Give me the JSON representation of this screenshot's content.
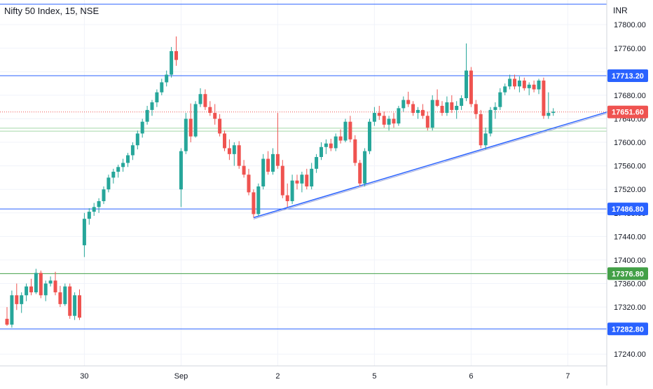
{
  "header": {
    "title": "Nifty 50 Index, 15, NSE",
    "currency": "INR"
  },
  "chart_data": {
    "type": "candlestick",
    "title": "Nifty 50 Index, 15, NSE",
    "ylim": [
      17220,
      17830
    ],
    "x_labels": [
      {
        "label": "30",
        "index": 16
      },
      {
        "label": "Sep",
        "index": 36
      },
      {
        "label": "2",
        "index": 56
      },
      {
        "label": "5",
        "index": 76
      },
      {
        "label": "6",
        "index": 96
      },
      {
        "label": "7",
        "index": 116
      }
    ],
    "y_ticks": [
      17240,
      17280,
      17320,
      17360,
      17400,
      17440,
      17480,
      17520,
      17560,
      17600,
      17640,
      17680,
      17720,
      17760,
      17800
    ],
    "up_color": "#26a69a",
    "down_color": "#ef5350",
    "levels": [
      {
        "name": "level-17713",
        "value": 17713.2,
        "label": "17713.20",
        "color": "#2962ff"
      },
      {
        "name": "level-17486",
        "value": 17486.8,
        "label": "17486.80",
        "color": "#2962ff"
      },
      {
        "name": "level-17376",
        "value": 17376.8,
        "label": "17376.80",
        "color": "#43a047"
      },
      {
        "name": "level-17282",
        "value": 17282.8,
        "label": "17282.80",
        "color": "#2962ff"
      }
    ],
    "top_line": {
      "value": 17845,
      "color": "#2962ff"
    },
    "current_price": {
      "value": 17651.6,
      "label": "17651.60",
      "color": "#ef5350"
    },
    "support_band": [
      17619,
      17624
    ],
    "trendline": {
      "start": {
        "index": 51,
        "value": 17472
      },
      "end": {
        "index": 124,
        "value": 17650
      },
      "color": "#2962ff"
    },
    "candles": [
      [
        17300,
        17320,
        17288,
        17290
      ],
      [
        17290,
        17348,
        17285,
        17340
      ],
      [
        17340,
        17360,
        17315,
        17325
      ],
      [
        17325,
        17345,
        17310,
        17340
      ],
      [
        17340,
        17360,
        17330,
        17355
      ],
      [
        17355,
        17368,
        17340,
        17345
      ],
      [
        17345,
        17385,
        17342,
        17378
      ],
      [
        17378,
        17382,
        17335,
        17340
      ],
      [
        17340,
        17365,
        17330,
        17360
      ],
      [
        17360,
        17372,
        17355,
        17365
      ],
      [
        17365,
        17380,
        17340,
        17345
      ],
      [
        17345,
        17356,
        17320,
        17325
      ],
      [
        17325,
        17360,
        17322,
        17355
      ],
      [
        17355,
        17360,
        17300,
        17305
      ],
      [
        17305,
        17345,
        17298,
        17340
      ],
      [
        17340,
        17350,
        17298,
        17302
      ],
      [
        17425,
        17480,
        17405,
        17470
      ],
      [
        17470,
        17488,
        17460,
        17482
      ],
      [
        17482,
        17497,
        17475,
        17490
      ],
      [
        17490,
        17505,
        17480,
        17500
      ],
      [
        17500,
        17525,
        17495,
        17520
      ],
      [
        17520,
        17545,
        17515,
        17540
      ],
      [
        17540,
        17555,
        17530,
        17550
      ],
      [
        17550,
        17562,
        17540,
        17558
      ],
      [
        17558,
        17572,
        17550,
        17565
      ],
      [
        17565,
        17582,
        17558,
        17578
      ],
      [
        17578,
        17600,
        17570,
        17595
      ],
      [
        17595,
        17620,
        17588,
        17615
      ],
      [
        17615,
        17640,
        17608,
        17635
      ],
      [
        17635,
        17662,
        17630,
        17655
      ],
      [
        17655,
        17672,
        17645,
        17668
      ],
      [
        17668,
        17690,
        17660,
        17685
      ],
      [
        17685,
        17708,
        17680,
        17702
      ],
      [
        17702,
        17722,
        17695,
        17715
      ],
      [
        17715,
        17762,
        17710,
        17755
      ],
      [
        17755,
        17780,
        17730,
        17740
      ],
      [
        17520,
        17590,
        17490,
        17585
      ],
      [
        17585,
        17650,
        17580,
        17640
      ],
      [
        17640,
        17666,
        17600,
        17610
      ],
      [
        17610,
        17670,
        17608,
        17665
      ],
      [
        17665,
        17692,
        17660,
        17682
      ],
      [
        17682,
        17690,
        17655,
        17660
      ],
      [
        17660,
        17670,
        17645,
        17650
      ],
      [
        17650,
        17665,
        17630,
        17640
      ],
      [
        17640,
        17648,
        17610,
        17615
      ],
      [
        17615,
        17620,
        17585,
        17590
      ],
      [
        17590,
        17605,
        17570,
        17580
      ],
      [
        17580,
        17600,
        17560,
        17595
      ],
      [
        17595,
        17602,
        17555,
        17560
      ],
      [
        17560,
        17570,
        17540,
        17545
      ],
      [
        17545,
        17555,
        17510,
        17515
      ],
      [
        17515,
        17520,
        17472,
        17478
      ],
      [
        17478,
        17530,
        17475,
        17525
      ],
      [
        17525,
        17580,
        17520,
        17572
      ],
      [
        17572,
        17585,
        17545,
        17550
      ],
      [
        17550,
        17590,
        17545,
        17580
      ],
      [
        17580,
        17650,
        17555,
        17560
      ],
      [
        17560,
        17570,
        17505,
        17510
      ],
      [
        17510,
        17530,
        17490,
        17500
      ],
      [
        17500,
        17545,
        17495,
        17535
      ],
      [
        17535,
        17545,
        17520,
        17530
      ],
      [
        17530,
        17550,
        17515,
        17545
      ],
      [
        17545,
        17555,
        17520,
        17525
      ],
      [
        17525,
        17565,
        17520,
        17555
      ],
      [
        17555,
        17580,
        17548,
        17575
      ],
      [
        17575,
        17600,
        17570,
        17592
      ],
      [
        17592,
        17605,
        17580,
        17598
      ],
      [
        17598,
        17606,
        17585,
        17590
      ],
      [
        17590,
        17615,
        17585,
        17610
      ],
      [
        17610,
        17622,
        17598,
        17603
      ],
      [
        17603,
        17640,
        17600,
        17635
      ],
      [
        17635,
        17645,
        17600,
        17605
      ],
      [
        17605,
        17612,
        17560,
        17565
      ],
      [
        17565,
        17570,
        17525,
        17530
      ],
      [
        17530,
        17590,
        17525,
        17585
      ],
      [
        17585,
        17640,
        17580,
        17635
      ],
      [
        17635,
        17660,
        17628,
        17650
      ],
      [
        17650,
        17662,
        17638,
        17645
      ],
      [
        17645,
        17652,
        17625,
        17630
      ],
      [
        17630,
        17645,
        17620,
        17640
      ],
      [
        17640,
        17650,
        17625,
        17632
      ],
      [
        17632,
        17662,
        17628,
        17658
      ],
      [
        17658,
        17678,
        17652,
        17672
      ],
      [
        17672,
        17686,
        17660,
        17665
      ],
      [
        17665,
        17670,
        17645,
        17650
      ],
      [
        17650,
        17660,
        17640,
        17655
      ],
      [
        17655,
        17665,
        17640,
        17645
      ],
      [
        17645,
        17652,
        17620,
        17625
      ],
      [
        17625,
        17680,
        17620,
        17672
      ],
      [
        17672,
        17690,
        17660,
        17662
      ],
      [
        17662,
        17670,
        17645,
        17650
      ],
      [
        17650,
        17678,
        17645,
        17668
      ],
      [
        17668,
        17680,
        17650,
        17655
      ],
      [
        17655,
        17670,
        17640,
        17662
      ],
      [
        17662,
        17680,
        17655,
        17675
      ],
      [
        17675,
        17768,
        17670,
        17722
      ],
      [
        17722,
        17728,
        17660,
        17665
      ],
      [
        17665,
        17672,
        17640,
        17648
      ],
      [
        17648,
        17655,
        17590,
        17595
      ],
      [
        17595,
        17625,
        17588,
        17615
      ],
      [
        17615,
        17660,
        17610,
        17655
      ],
      [
        17655,
        17668,
        17640,
        17660
      ],
      [
        17660,
        17692,
        17655,
        17685
      ],
      [
        17685,
        17700,
        17680,
        17695
      ],
      [
        17695,
        17715,
        17690,
        17708
      ],
      [
        17708,
        17715,
        17690,
        17695
      ],
      [
        17695,
        17712,
        17685,
        17705
      ],
      [
        17705,
        17710,
        17688,
        17692
      ],
      [
        17692,
        17702,
        17680,
        17698
      ],
      [
        17698,
        17705,
        17685,
        17690
      ],
      [
        17690,
        17708,
        17682,
        17705
      ],
      [
        17705,
        17710,
        17640,
        17645
      ],
      [
        17645,
        17685,
        17640,
        17650
      ],
      [
        17650,
        17658,
        17645,
        17652
      ]
    ]
  }
}
